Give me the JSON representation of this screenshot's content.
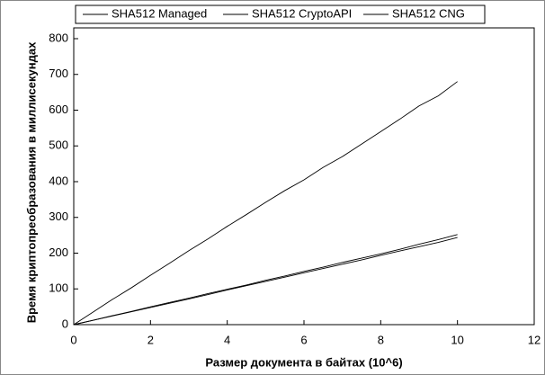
{
  "chart_data": {
    "type": "line",
    "xlabel": "Размер документа в байтах (10^6)",
    "ylabel": "Время криптопреобразования в миллисекундах",
    "x": [
      0,
      0.5,
      1,
      1.5,
      2,
      2.5,
      3,
      3.5,
      4,
      4.5,
      5,
      5.5,
      6,
      6.5,
      7,
      7.5,
      8,
      8.5,
      9,
      9.5,
      10
    ],
    "series": [
      {
        "name": "SHA512 Managed",
        "color": "#000000",
        "values": [
          0,
          35,
          70,
          103,
          138,
          172,
          207,
          240,
          275,
          308,
          342,
          375,
          405,
          440,
          470,
          505,
          540,
          575,
          612,
          640,
          680
        ]
      },
      {
        "name": "SHA512 CryptoAPI",
        "color": "#000000",
        "values": [
          0,
          12,
          25,
          37,
          50,
          62,
          74,
          87,
          99,
          111,
          124,
          136,
          149,
          161,
          174,
          186,
          198,
          211,
          225,
          238,
          252
        ]
      },
      {
        "name": "SHA512 CNG",
        "color": "#000000",
        "values": [
          0,
          12,
          24,
          36,
          48,
          60,
          72,
          84,
          97,
          109,
          121,
          133,
          145,
          157,
          169,
          181,
          194,
          206,
          218,
          230,
          244
        ]
      }
    ],
    "xlim": [
      0,
      12
    ],
    "xticks": [
      0,
      2,
      4,
      6,
      8,
      10,
      12
    ],
    "ylim": [
      0,
      800
    ],
    "yticks": [
      0,
      100,
      200,
      300,
      400,
      500,
      600,
      700,
      800
    ],
    "legend": "top"
  }
}
